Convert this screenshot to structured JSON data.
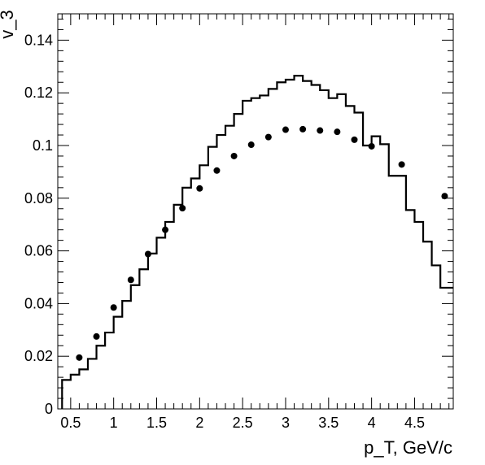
{
  "chart_data": {
    "type": "line",
    "xlabel": "p_T, GeV/c",
    "ylabel": "v_3",
    "xlim": [
      0.35,
      4.95
    ],
    "ylim": [
      0,
      0.15
    ],
    "x_ticks": [
      0.5,
      1,
      1.5,
      2,
      2.5,
      3,
      3.5,
      4,
      4.5
    ],
    "x_tick_labels": [
      "0.5",
      "1",
      "1.5",
      "2",
      "2.5",
      "3",
      "3.5",
      "4",
      "4.5"
    ],
    "y_ticks": [
      0,
      0.02,
      0.04,
      0.06,
      0.08,
      0.1,
      0.12,
      0.14
    ],
    "y_tick_labels": [
      "0",
      "0.02",
      "0.04",
      "0.06",
      "0.08",
      "0.1",
      "0.12",
      "0.14"
    ],
    "grid": false,
    "legend": "none",
    "series": [
      {
        "type": "step-histogram",
        "color": "#000000",
        "bins": [
          [
            0.4,
            0.5,
            0.011
          ],
          [
            0.5,
            0.6,
            0.013
          ],
          [
            0.6,
            0.7,
            0.015
          ],
          [
            0.7,
            0.8,
            0.019
          ],
          [
            0.8,
            0.9,
            0.024
          ],
          [
            0.9,
            1.0,
            0.029
          ],
          [
            1.0,
            1.1,
            0.035
          ],
          [
            1.1,
            1.2,
            0.041
          ],
          [
            1.2,
            1.3,
            0.047
          ],
          [
            1.3,
            1.4,
            0.053
          ],
          [
            1.4,
            1.5,
            0.059
          ],
          [
            1.5,
            1.6,
            0.065
          ],
          [
            1.6,
            1.7,
            0.071
          ],
          [
            1.7,
            1.8,
            0.0775
          ],
          [
            1.8,
            1.9,
            0.084
          ],
          [
            1.9,
            2.0,
            0.0875
          ],
          [
            2.0,
            2.1,
            0.0925
          ],
          [
            2.1,
            2.2,
            0.0995
          ],
          [
            2.2,
            2.3,
            0.104
          ],
          [
            2.3,
            2.4,
            0.1075
          ],
          [
            2.4,
            2.5,
            0.112
          ],
          [
            2.5,
            2.6,
            0.117
          ],
          [
            2.6,
            2.7,
            0.118
          ],
          [
            2.7,
            2.8,
            0.119
          ],
          [
            2.8,
            2.9,
            0.1215
          ],
          [
            2.9,
            3.0,
            0.124
          ],
          [
            3.0,
            3.1,
            0.125
          ],
          [
            3.1,
            3.2,
            0.1265
          ],
          [
            3.2,
            3.3,
            0.1245
          ],
          [
            3.3,
            3.4,
            0.123
          ],
          [
            3.4,
            3.5,
            0.121
          ],
          [
            3.5,
            3.6,
            0.118
          ],
          [
            3.6,
            3.7,
            0.1195
          ],
          [
            3.7,
            3.8,
            0.115
          ],
          [
            3.8,
            3.9,
            0.1125
          ],
          [
            3.9,
            4.0,
            0.1
          ],
          [
            4.0,
            4.1,
            0.1035
          ],
          [
            4.1,
            4.2,
            0.1005
          ],
          [
            4.2,
            4.4,
            0.0885
          ],
          [
            4.4,
            4.5,
            0.0755
          ],
          [
            4.5,
            4.6,
            0.071
          ],
          [
            4.6,
            4.7,
            0.0635
          ],
          [
            4.7,
            4.8,
            0.0545
          ],
          [
            4.8,
            4.95,
            0.046
          ]
        ]
      },
      {
        "type": "scatter",
        "color": "#000000",
        "x": [
          0.6,
          0.8,
          1.0,
          1.2,
          1.4,
          1.6,
          1.8,
          2.0,
          2.2,
          2.4,
          2.6,
          2.8,
          3.0,
          3.2,
          3.4,
          3.6,
          3.8,
          4.0,
          4.35,
          4.85
        ],
        "y": [
          0.0195,
          0.0275,
          0.0385,
          0.049,
          0.0588,
          0.068,
          0.0762,
          0.0837,
          0.0905,
          0.096,
          0.1003,
          0.1032,
          0.106,
          0.1062,
          0.1057,
          0.1052,
          0.1022,
          0.0997,
          0.0928,
          0.0808
        ]
      }
    ]
  }
}
